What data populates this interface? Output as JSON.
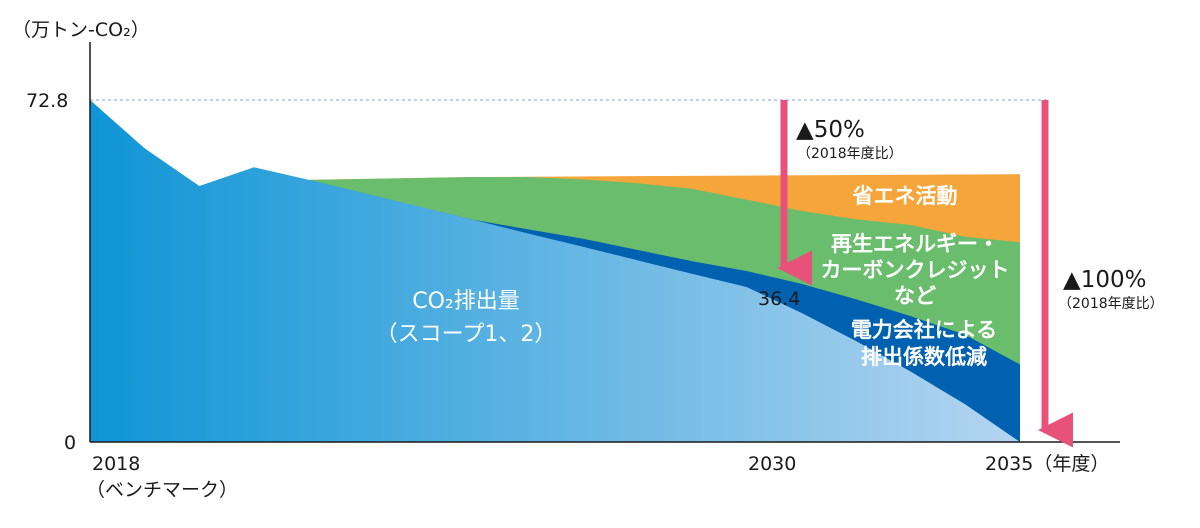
{
  "chart_data": {
    "type": "area",
    "y_unit": "（万トン-CO₂）",
    "x_categories": [
      2018,
      2019,
      2020,
      2021,
      2022,
      2023,
      2024,
      2025,
      2026,
      2027,
      2028,
      2029,
      2030,
      2031,
      2032,
      2033,
      2034,
      2035
    ],
    "ylim": [
      0,
      72.8
    ],
    "y_ticks": [
      "72.8",
      "0"
    ],
    "x_tick_labels": [
      {
        "x": 2018,
        "text": "2018",
        "sub": "（ベンチマーク）"
      },
      {
        "x": 2030,
        "text": "2030"
      },
      {
        "x": 2035,
        "text": "2035（年度）"
      }
    ],
    "series": [
      {
        "name": "CO₂排出量（スコープ1、2）",
        "color": "#1a97d8",
        "x": [
          2018,
          2019,
          2020,
          2021,
          2022,
          2023,
          2024,
          2025,
          2026,
          2027,
          2028,
          2029,
          2030,
          2031,
          2032,
          2033,
          2034,
          2035
        ],
        "values": [
          72.8,
          62.5,
          54.5,
          58.5,
          55.8,
          53.0,
          50.2,
          47.3,
          44.4,
          41.6,
          38.7,
          35.8,
          33.0,
          27.5,
          21.5,
          15.0,
          8.0,
          0
        ]
      },
      {
        "name": "電力会社による排出係数低減",
        "color": "#0061b0",
        "x": [
          2022,
          2025,
          2027,
          2028,
          2029,
          2030,
          2031,
          2032,
          2033,
          2034,
          2035
        ],
        "values": [
          55.8,
          47.3,
          43.3,
          40.9,
          38.5,
          36.4,
          33.7,
          30.4,
          26.8,
          22.8,
          16.5
        ]
      },
      {
        "name": "再生エネルギー・カーボンクレジットなど",
        "color": "#69bd6c",
        "x": [
          2022,
          2025,
          2026,
          2027,
          2028,
          2029,
          2030,
          2031,
          2032,
          2033,
          2034,
          2035
        ],
        "values": [
          55.8,
          56.4,
          56.4,
          55.9,
          55.1,
          53.9,
          51.6,
          49.2,
          47.4,
          46.2,
          43.7,
          42.5
        ]
      },
      {
        "name": "省エネ活動",
        "color": "#f5a53a",
        "x": [
          2022,
          2025,
          2030,
          2035
        ],
        "values": [
          55.8,
          56.4,
          56.7,
          57.0
        ]
      }
    ],
    "reference_line": {
      "value": 72.8,
      "style": "dashed"
    },
    "annotations": {
      "value_2030": "36.4",
      "arrow_2030": {
        "x": 2030,
        "label": "▲50%",
        "sub": "（2018年度比）"
      },
      "arrow_2035": {
        "x": 2035,
        "label": "▲100%",
        "sub": "（2018年度比）"
      }
    }
  },
  "labels": {
    "co2_line1": "CO₂排出量",
    "co2_line2": "（スコープ1、2）",
    "energy_saving": "省エネ活動",
    "renewable_line1": "再生エネルギー・",
    "renewable_line2": "カーボンクレジット",
    "renewable_line3": "など",
    "power_line1": "電力会社による",
    "power_line2": "排出係数低減"
  },
  "colors": {
    "arrow": "#e8527a",
    "dashed_line": "#6fa8dc",
    "gradient_start": "#0f95d6",
    "gradient_end": "#b4d5f0"
  }
}
